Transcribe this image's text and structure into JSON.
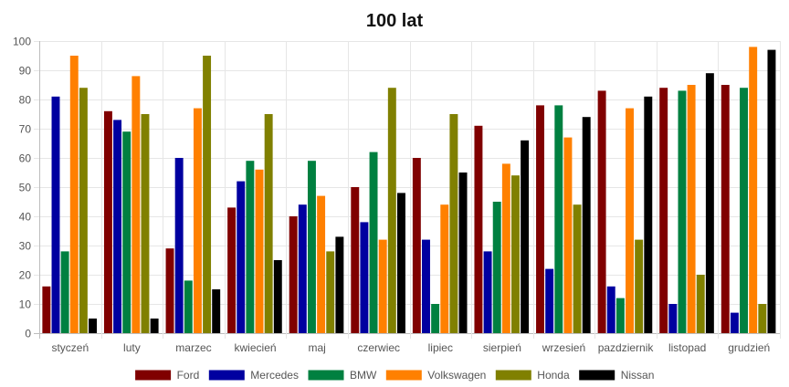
{
  "chart_data": {
    "type": "bar",
    "title": "100 lat",
    "xlabel": "",
    "ylabel": "",
    "ylim": [
      0,
      100
    ],
    "yticks": [
      0,
      10,
      20,
      30,
      40,
      50,
      60,
      70,
      80,
      90,
      100
    ],
    "grid": true,
    "legend_position": "bottom",
    "categories": [
      "styczeń",
      "luty",
      "marzec",
      "kwiecień",
      "maj",
      "czerwiec",
      "lipiec",
      "sierpień",
      "wrzesień",
      "pazdziernik",
      "listopad",
      "grudzień"
    ],
    "series": [
      {
        "name": "Ford",
        "color": "#800000",
        "values": [
          16,
          76,
          29,
          43,
          40,
          50,
          60,
          71,
          78,
          83,
          84,
          85
        ]
      },
      {
        "name": "Mercedes",
        "color": "#0000a0",
        "values": [
          81,
          73,
          60,
          52,
          44,
          38,
          32,
          28,
          22,
          16,
          10,
          7
        ]
      },
      {
        "name": "BMW",
        "color": "#008040",
        "values": [
          28,
          69,
          18,
          59,
          59,
          62,
          10,
          45,
          78,
          12,
          83,
          84
        ]
      },
      {
        "name": "Volkswagen",
        "color": "#ff8000",
        "values": [
          95,
          88,
          77,
          56,
          47,
          32,
          44,
          58,
          67,
          77,
          85,
          98
        ]
      },
      {
        "name": "Honda",
        "color": "#808000",
        "values": [
          84,
          75,
          95,
          75,
          28,
          84,
          75,
          54,
          44,
          32,
          20,
          10
        ]
      },
      {
        "name": "Nissan",
        "color": "#000000",
        "values": [
          5,
          5,
          15,
          25,
          33,
          48,
          55,
          66,
          74,
          81,
          89,
          97
        ]
      }
    ]
  }
}
